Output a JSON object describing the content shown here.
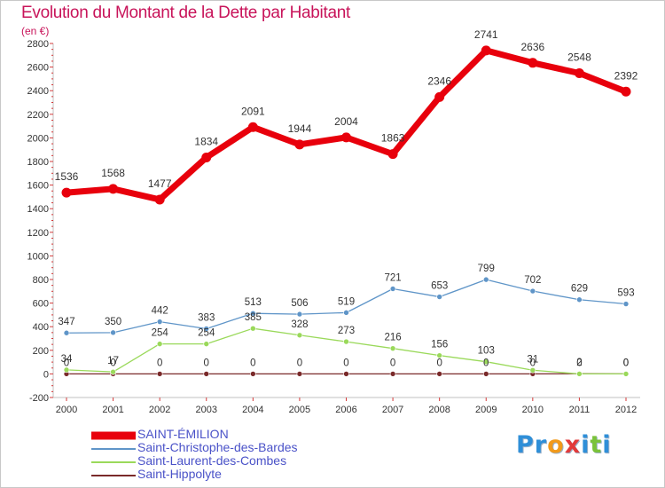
{
  "title": "Evolution du Montant de la Dette par Habitant",
  "subtitle": "(en €)",
  "logo_text": "Proxiti",
  "chart_data": {
    "type": "line",
    "title": "Evolution du Montant de la Dette par Habitant",
    "subtitle": "(en €)",
    "x": [
      "2000",
      "2001",
      "2002",
      "2003",
      "2004",
      "2005",
      "2006",
      "2007",
      "2008",
      "2009",
      "2010",
      "2011",
      "2012"
    ],
    "ylim": [
      -200,
      2800
    ],
    "yticks": [
      -200,
      0,
      200,
      400,
      600,
      800,
      1000,
      1200,
      1400,
      1600,
      1800,
      2000,
      2200,
      2400,
      2600,
      2800
    ],
    "grid": false,
    "legend_position": "bottom-left",
    "series": [
      {
        "name": "SAINT-ÉMILION",
        "color": "#e8000c",
        "values": [
          1536,
          1568,
          1477,
          1834,
          2091,
          1944,
          2004,
          1863,
          2346,
          2741,
          2636,
          2548,
          2392
        ]
      },
      {
        "name": "Saint-Christophe-des-Bardes",
        "color": "#5f95c8",
        "values": [
          347,
          350,
          442,
          383,
          513,
          506,
          519,
          721,
          653,
          799,
          702,
          629,
          593
        ]
      },
      {
        "name": "Saint-Laurent-des-Combes",
        "color": "#9ad95a",
        "values": [
          34,
          17,
          254,
          254,
          385,
          328,
          273,
          216,
          156,
          103,
          31,
          0,
          0
        ]
      },
      {
        "name": "Saint-Hippolyte",
        "color": "#7a2a2a",
        "values": [
          0,
          0,
          0,
          0,
          0,
          0,
          0,
          0,
          0,
          0,
          0,
          2,
          0
        ]
      }
    ]
  }
}
